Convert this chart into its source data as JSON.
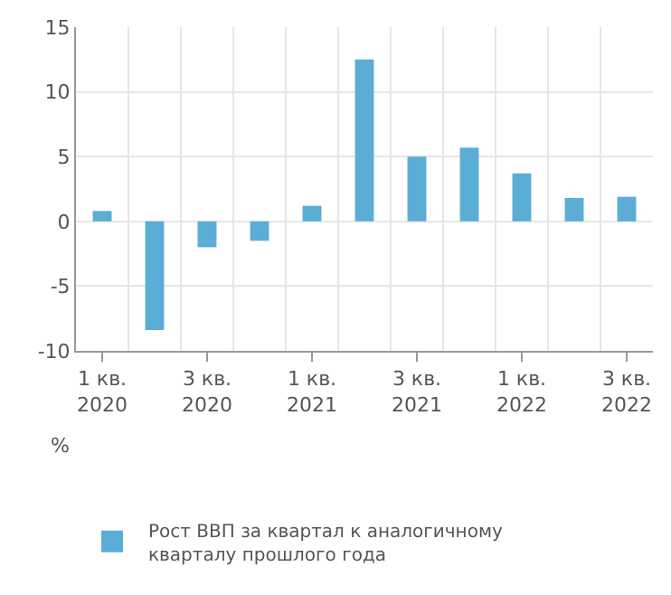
{
  "chart_data": {
    "type": "bar",
    "ylabel": "%",
    "categories": [
      "1 кв.\n2020",
      null,
      "3 кв.\n2020",
      null,
      "1 кв.\n2021",
      null,
      "3 кв.\n2021",
      null,
      "1 кв.\n2022",
      null,
      "3 кв.\n2022"
    ],
    "series": [
      {
        "name": "Рост ВВП за квартал к аналогичному кварталу прошлого года",
        "color": "#5aaed6",
        "values": [
          0.8,
          -8.4,
          -2.0,
          -1.5,
          1.2,
          12.5,
          5.0,
          5.7,
          3.7,
          1.8,
          1.9
        ]
      }
    ],
    "ylim": [
      -10,
      15
    ],
    "yticks": [
      -10,
      -5,
      0,
      5,
      10,
      15
    ],
    "grid": true,
    "legend": "bottom"
  }
}
